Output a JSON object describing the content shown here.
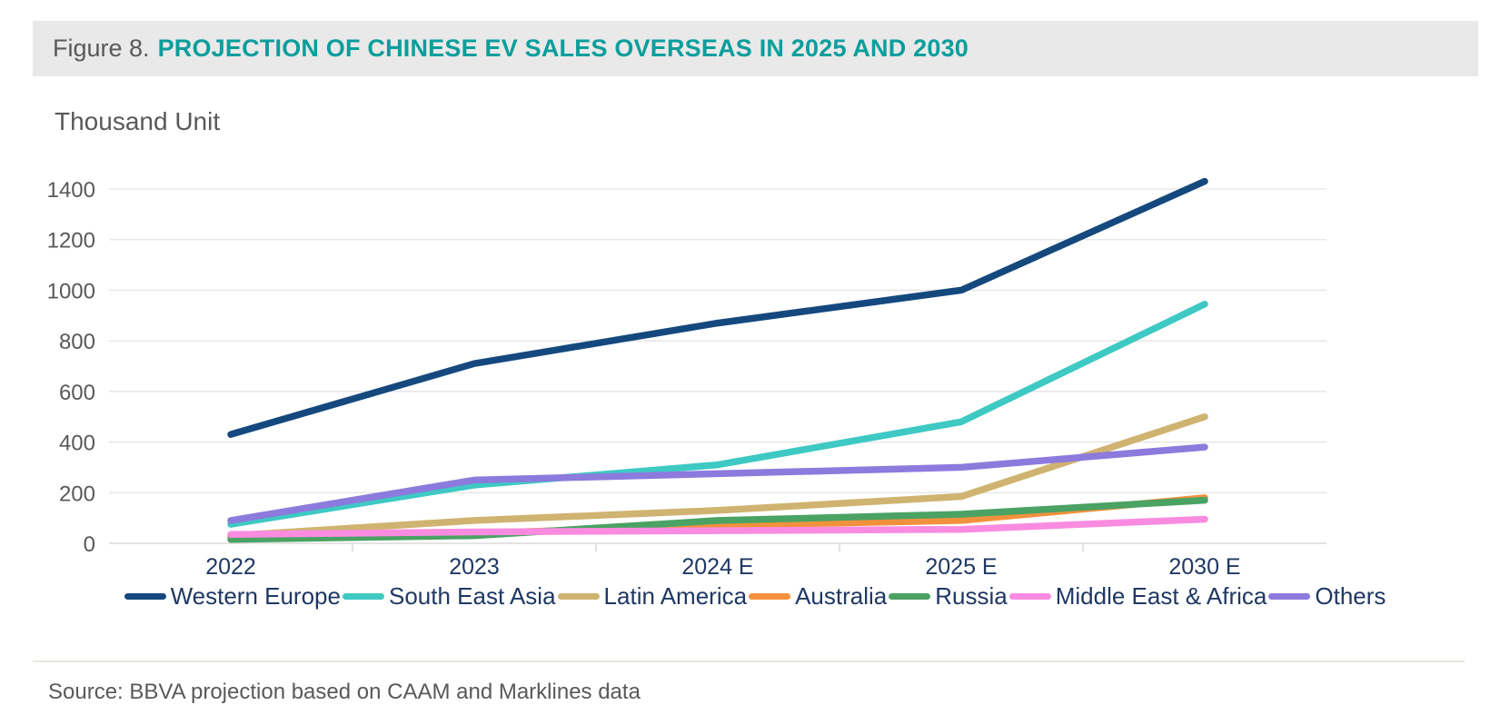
{
  "header": {
    "figure_label": "Figure 8.",
    "title": "PROJECTION OF CHINESE EV SALES OVERSEAS IN 2025 AND 2030"
  },
  "chart_data": {
    "type": "line",
    "title": "Projection of Chinese EV sales overseas in 2025 and 2030",
    "unit_label": "Thousand Unit",
    "categories": [
      "2022",
      "2023",
      "2024 E",
      "2025 E",
      "2030 E"
    ],
    "series": [
      {
        "name": "Western Europe",
        "color": "#15497e",
        "values": [
          430,
          710,
          870,
          1000,
          1430
        ]
      },
      {
        "name": "South East Asia",
        "color": "#3ec9c3",
        "values": [
          75,
          230,
          310,
          480,
          945
        ]
      },
      {
        "name": "Latin America",
        "color": "#cfb370",
        "values": [
          30,
          90,
          130,
          185,
          500
        ]
      },
      {
        "name": "Australia",
        "color": "#f2913d",
        "values": [
          25,
          40,
          70,
          90,
          180
        ]
      },
      {
        "name": "Russia",
        "color": "#4aa263",
        "values": [
          15,
          30,
          90,
          115,
          170
        ]
      },
      {
        "name": "Middle East & Africa",
        "color": "#f98ce1",
        "values": [
          35,
          45,
          50,
          55,
          95
        ]
      },
      {
        "name": "Others",
        "color": "#8c7add",
        "values": [
          90,
          250,
          275,
          300,
          380
        ]
      }
    ],
    "ylim": [
      0,
      1400
    ],
    "yticks": [
      0,
      200,
      400,
      600,
      800,
      1000,
      1200,
      1400
    ],
    "grid": true,
    "legend_position": "bottom",
    "xlabel": "",
    "ylabel": "Thousand Unit"
  },
  "source": {
    "text": "Source: BBVA projection based on CAAM and Marklines data"
  },
  "colors": {
    "title_accent": "#0a9e9c",
    "header_background": "#e9e9e9",
    "axis_label_text": "#1f3864",
    "tick_label_text": "#595959",
    "gridline": "#e8e8e8",
    "zero_line": "#dcdcdc",
    "muted_text": "#595959",
    "divider": "#e9e5de"
  }
}
